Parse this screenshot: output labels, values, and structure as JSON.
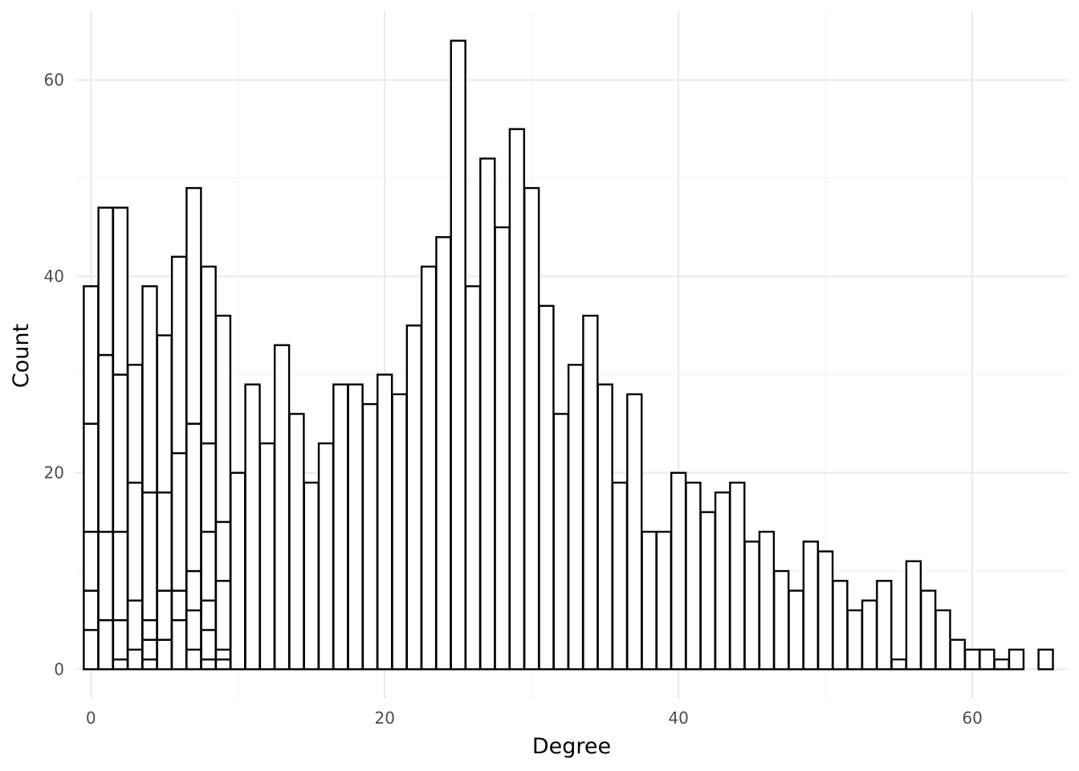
{
  "chart_data": {
    "type": "bar",
    "subtype": "stacked-histogram",
    "xlabel": "Degree",
    "ylabel": "Count",
    "xlim": [
      -1,
      66.5
    ],
    "ylim": [
      -3,
      67
    ],
    "x_ticks": [
      0,
      20,
      40,
      60
    ],
    "y_ticks": [
      0,
      20,
      40,
      60
    ],
    "grid": true,
    "legend": "none",
    "bar_fill": "#ffffff",
    "bar_outline": "#000000",
    "stacked_bins": [
      {
        "x": 0,
        "segments": [
          4,
          8,
          14,
          25,
          39
        ]
      },
      {
        "x": 1,
        "segments": [
          5,
          14,
          32,
          47
        ]
      },
      {
        "x": 2,
        "segments": [
          1,
          5,
          14,
          30,
          47
        ]
      },
      {
        "x": 3,
        "segments": [
          2,
          7,
          19,
          31
        ]
      },
      {
        "x": 4,
        "segments": [
          1,
          3,
          5,
          18,
          39
        ]
      },
      {
        "x": 5,
        "segments": [
          3,
          8,
          18,
          34
        ]
      },
      {
        "x": 6,
        "segments": [
          5,
          8,
          22,
          42
        ]
      },
      {
        "x": 7,
        "segments": [
          2,
          6,
          10,
          25,
          49
        ]
      },
      {
        "x": 8,
        "segments": [
          1,
          4,
          7,
          14,
          23,
          41
        ]
      },
      {
        "x": 9,
        "segments": [
          1,
          2,
          9,
          15,
          36
        ]
      }
    ],
    "x": [
      10,
      11,
      12,
      13,
      14,
      15,
      16,
      17,
      18,
      19,
      20,
      21,
      22,
      23,
      24,
      25,
      26,
      27,
      28,
      29,
      30,
      31,
      32,
      33,
      34,
      35,
      36,
      37,
      38,
      39,
      40,
      41,
      42,
      43,
      44,
      45,
      46,
      47,
      48,
      49,
      50,
      51,
      52,
      53,
      54,
      55,
      56,
      57,
      58,
      59,
      60,
      61,
      62,
      63,
      65
    ],
    "values": [
      20,
      29,
      23,
      33,
      26,
      19,
      23,
      29,
      29,
      27,
      30,
      28,
      35,
      41,
      44,
      64,
      39,
      52,
      45,
      55,
      49,
      37,
      26,
      31,
      36,
      29,
      19,
      28,
      14,
      14,
      20,
      19,
      16,
      18,
      19,
      13,
      14,
      10,
      8,
      13,
      12,
      9,
      6,
      7,
      9,
      1,
      11,
      8,
      6,
      3,
      2,
      2,
      1,
      2,
      2
    ]
  }
}
